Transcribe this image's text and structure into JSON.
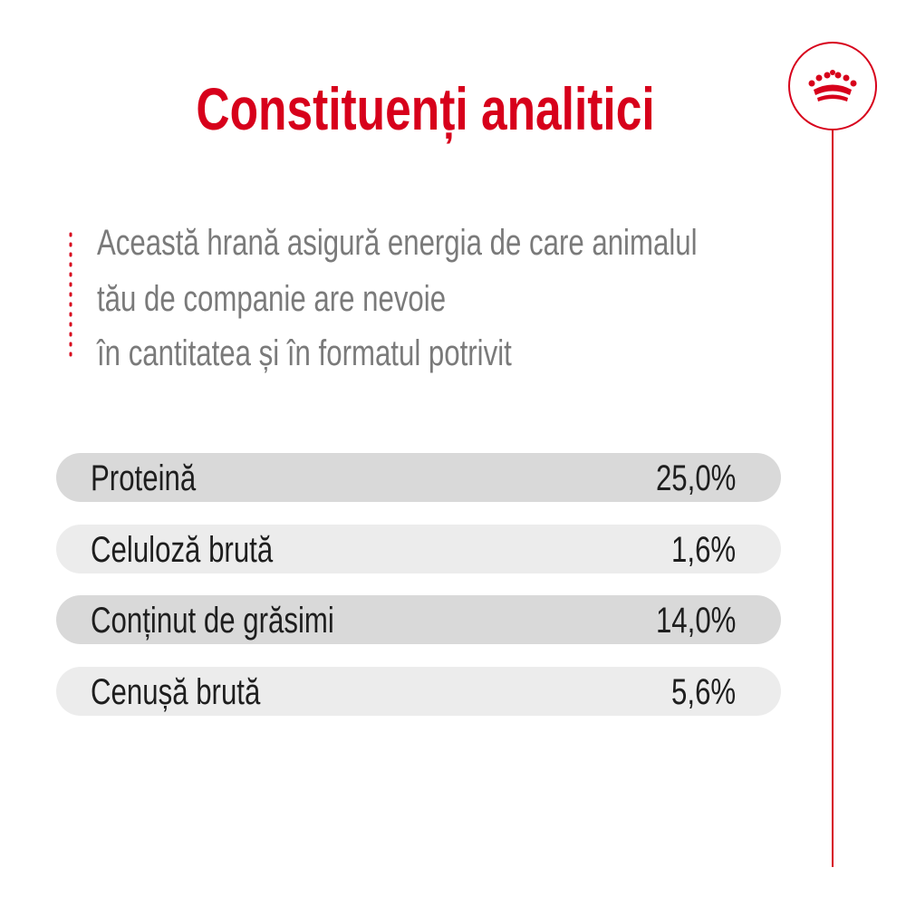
{
  "header": {
    "title": "Constituenți analitici"
  },
  "description": {
    "lines": [
      "Această hrană asigură energia de care animalul",
      "tău de companie are nevoie",
      "în cantitatea și în formatul potrivit"
    ]
  },
  "table": {
    "rows": [
      [
        "Proteină",
        "25,0%"
      ],
      [
        "Celuloză brută",
        "1,6%"
      ],
      [
        "Conținut de grăsimi",
        "14,0%"
      ],
      [
        "Cenușă brută",
        "5,6%"
      ]
    ]
  }
}
